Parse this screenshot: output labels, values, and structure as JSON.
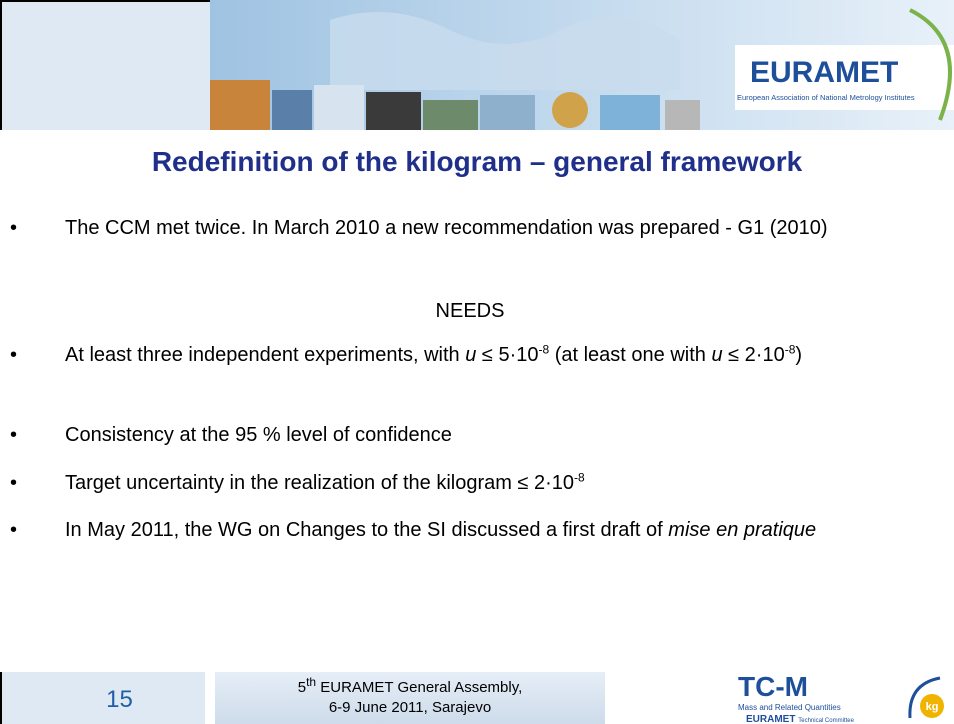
{
  "header": {
    "logo": "EURAMET",
    "logo_caption": "European Association of National Metrology Institutes"
  },
  "title": "Redefinition of the kilogram – general framework",
  "bullets": [
    [
      "The CCM met twice. In March 2010 a new recommendation was prepared - G1 (2010)"
    ],
    [
      "At least three independent experiments, with ",
      "u",
      " ≤ 5·10",
      "-8",
      " (at least one with ",
      "u",
      " ≤ 2·10",
      "-8",
      ")"
    ],
    [
      "Consistency at the 95 % level of confidence"
    ],
    [
      "Target uncertainty in the realization of the kilogram ≤ 2·10",
      "-8"
    ],
    [
      "In May 2011, the WG on Changes to the SI discussed a first draft of ",
      "mise en pratique"
    ]
  ],
  "needs": "NEEDS",
  "footer": {
    "page": "15",
    "event_ordinal": "5",
    "event_ordinal_suffix": "th",
    "event_line1": " EURAMET General Assembly,",
    "event_line2": "6-9 June 2011, Sarajevo",
    "tc_logo": "TC-M",
    "tc_caption": "Mass and Related Quantities",
    "tc_org": "EURAMET",
    "tc_org_caption": "Technical Committee",
    "kg": "kg"
  }
}
